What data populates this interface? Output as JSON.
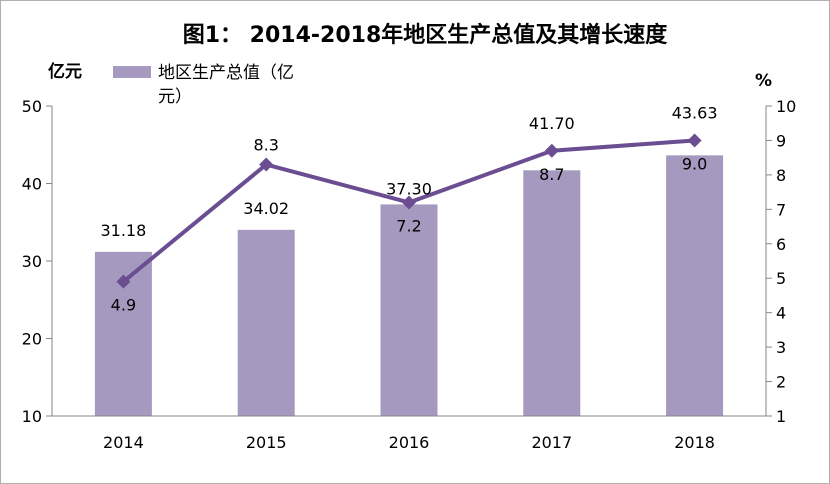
{
  "chart_data": {
    "type": "bar+line",
    "title": "图1：  2014-2018年地区生产总值及其增长速度",
    "categories": [
      "2014",
      "2015",
      "2016",
      "2017",
      "2018"
    ],
    "series": [
      {
        "name": "地区生产总值（亿元）",
        "type": "bar",
        "axis": "left",
        "values": [
          31.18,
          34.02,
          37.3,
          41.7,
          43.63
        ],
        "labels": [
          "31.18",
          "34.02",
          "37.30",
          "41.70",
          "43.63"
        ],
        "color": "#a599c0"
      },
      {
        "name": "",
        "type": "line",
        "axis": "right",
        "values": [
          4.9,
          8.3,
          7.2,
          8.7,
          9.0
        ],
        "labels": [
          "4.9",
          "8.3",
          "7.2",
          "8.7",
          "9.0"
        ],
        "color": "#6b4e91"
      }
    ],
    "y_left": {
      "unit": "亿元",
      "min": 10,
      "max": 50,
      "ticks": [
        "10",
        "20",
        "30",
        "40",
        "50"
      ]
    },
    "y_right": {
      "unit": "%",
      "min": 1,
      "max": 10,
      "ticks": [
        "1",
        "2",
        "3",
        "4",
        "5",
        "6",
        "7",
        "8",
        "9",
        "10"
      ]
    },
    "legend": {
      "placement": "top-left",
      "text_line1": "地区生产总值（亿",
      "text_line2": "元）"
    },
    "grid": false
  }
}
